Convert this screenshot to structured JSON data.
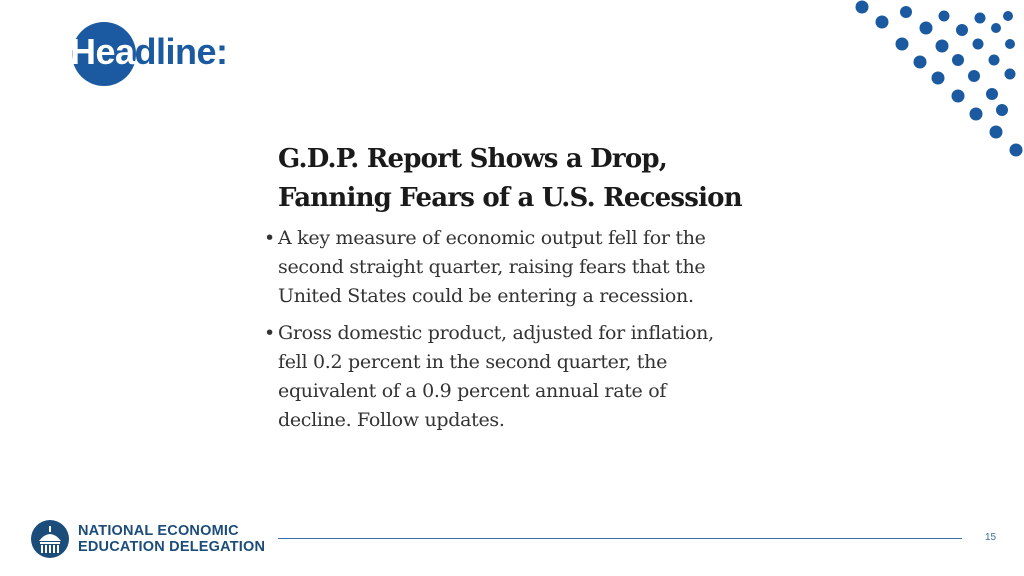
{
  "slide": {
    "title_part1": "Hea",
    "title_part2": "dline:",
    "accent_color": "#1b5aa0"
  },
  "article": {
    "headline_line1": "G.D.P. Report Shows a Drop,",
    "headline_line2": "Fanning Fears of a U.S. Recession",
    "bullets": [
      {
        "lines": [
          "A key measure of economic output fell for the",
          "second straight quarter, raising fears that the",
          "United States could be entering a recession."
        ]
      },
      {
        "lines": [
          "Gross domestic product, adjusted for inflation,",
          "fell 0.2 percent in the second quarter, the",
          "equivalent of a 0.9 percent annual rate of",
          "decline. Follow updates."
        ]
      }
    ]
  },
  "footer": {
    "org_line1": "NATIONAL ECONOMIC",
    "org_line2": "EDUCATION DELEGATION",
    "page_number": "15",
    "logo_icon": "capitol-dome-icon"
  },
  "decoration": {
    "pattern_icon": "dot-pattern-icon"
  }
}
